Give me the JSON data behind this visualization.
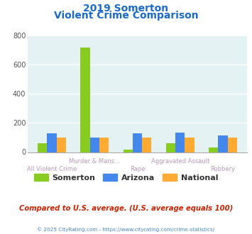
{
  "title_line1": "2019 Somerton",
  "title_line2": "Violent Crime Comparison",
  "x_labels_row1": [
    "",
    "Murder & Mans...",
    "",
    "Aggravated Assault",
    ""
  ],
  "x_labels_row2": [
    "All Violent Crime",
    "",
    "Rape",
    "",
    "Robbery"
  ],
  "somerton_values": [
    60,
    715,
    18,
    62,
    33
  ],
  "arizona_values": [
    128,
    100,
    128,
    133,
    113
  ],
  "national_values": [
    100,
    100,
    100,
    100,
    100
  ],
  "somerton_color": "#88cc22",
  "arizona_color": "#4488ee",
  "national_color": "#ffaa33",
  "plot_bg_color": "#e4f2f4",
  "grid_color": "#ffffff",
  "ylim": [
    0,
    800
  ],
  "yticks": [
    0,
    200,
    400,
    600,
    800
  ],
  "title_color": "#1a6acc",
  "xlabel_color_row1": "#bb99bb",
  "xlabel_color_row2": "#bb99bb",
  "footer_text": "Compared to U.S. average. (U.S. average equals 100)",
  "copyright_text": "© 2025 CityRating.com - https://www.cityrating.com/crime-statistics/",
  "legend_labels": [
    "Somerton",
    "Arizona",
    "National"
  ],
  "bar_width": 0.22
}
